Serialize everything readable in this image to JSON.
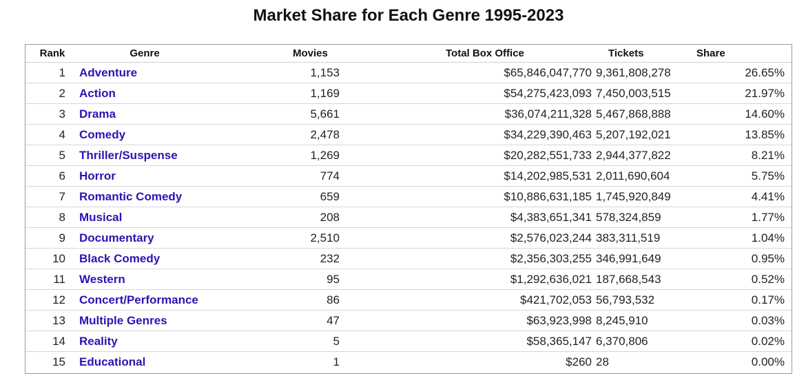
{
  "chart_data": {
    "type": "table",
    "title": "Market Share for Each Genre 1995-2023",
    "columns": [
      "Rank",
      "Genre",
      "Movies",
      "Total Box Office",
      "Tickets",
      "Share"
    ],
    "rows": [
      {
        "rank": "1",
        "genre": "Adventure",
        "movies": "1,153",
        "box_office": "$65,846,047,770",
        "tickets": "9,361,808,278",
        "share": "26.65%"
      },
      {
        "rank": "2",
        "genre": "Action",
        "movies": "1,169",
        "box_office": "$54,275,423,093",
        "tickets": "7,450,003,515",
        "share": "21.97%"
      },
      {
        "rank": "3",
        "genre": "Drama",
        "movies": "5,661",
        "box_office": "$36,074,211,328",
        "tickets": "5,467,868,888",
        "share": "14.60%"
      },
      {
        "rank": "4",
        "genre": "Comedy",
        "movies": "2,478",
        "box_office": "$34,229,390,463",
        "tickets": "5,207,192,021",
        "share": "13.85%"
      },
      {
        "rank": "5",
        "genre": "Thriller/Suspense",
        "movies": "1,269",
        "box_office": "$20,282,551,733",
        "tickets": "2,944,377,822",
        "share": "8.21%"
      },
      {
        "rank": "6",
        "genre": "Horror",
        "movies": "774",
        "box_office": "$14,202,985,531",
        "tickets": "2,011,690,604",
        "share": "5.75%"
      },
      {
        "rank": "7",
        "genre": "Romantic Comedy",
        "movies": "659",
        "box_office": "$10,886,631,185",
        "tickets": "1,745,920,849",
        "share": "4.41%"
      },
      {
        "rank": "8",
        "genre": "Musical",
        "movies": "208",
        "box_office": "$4,383,651,341",
        "tickets": "578,324,859",
        "share": "1.77%"
      },
      {
        "rank": "9",
        "genre": "Documentary",
        "movies": "2,510",
        "box_office": "$2,576,023,244",
        "tickets": "383,311,519",
        "share": "1.04%"
      },
      {
        "rank": "10",
        "genre": "Black Comedy",
        "movies": "232",
        "box_office": "$2,356,303,255",
        "tickets": "346,991,649",
        "share": "0.95%"
      },
      {
        "rank": "11",
        "genre": "Western",
        "movies": "95",
        "box_office": "$1,292,636,021",
        "tickets": "187,668,543",
        "share": "0.52%"
      },
      {
        "rank": "12",
        "genre": "Concert/Performance",
        "movies": "86",
        "box_office": "$421,702,053",
        "tickets": "56,793,532",
        "share": "0.17%"
      },
      {
        "rank": "13",
        "genre": "Multiple Genres",
        "movies": "47",
        "box_office": "$63,923,998",
        "tickets": "8,245,910",
        "share": "0.03%"
      },
      {
        "rank": "14",
        "genre": "Reality",
        "movies": "5",
        "box_office": "$58,365,147",
        "tickets": "6,370,806",
        "share": "0.02%"
      },
      {
        "rank": "15",
        "genre": "Educational",
        "movies": "1",
        "box_office": "$260",
        "tickets": "28",
        "share": "0.00%"
      }
    ],
    "link_color": "#2a14b4"
  }
}
